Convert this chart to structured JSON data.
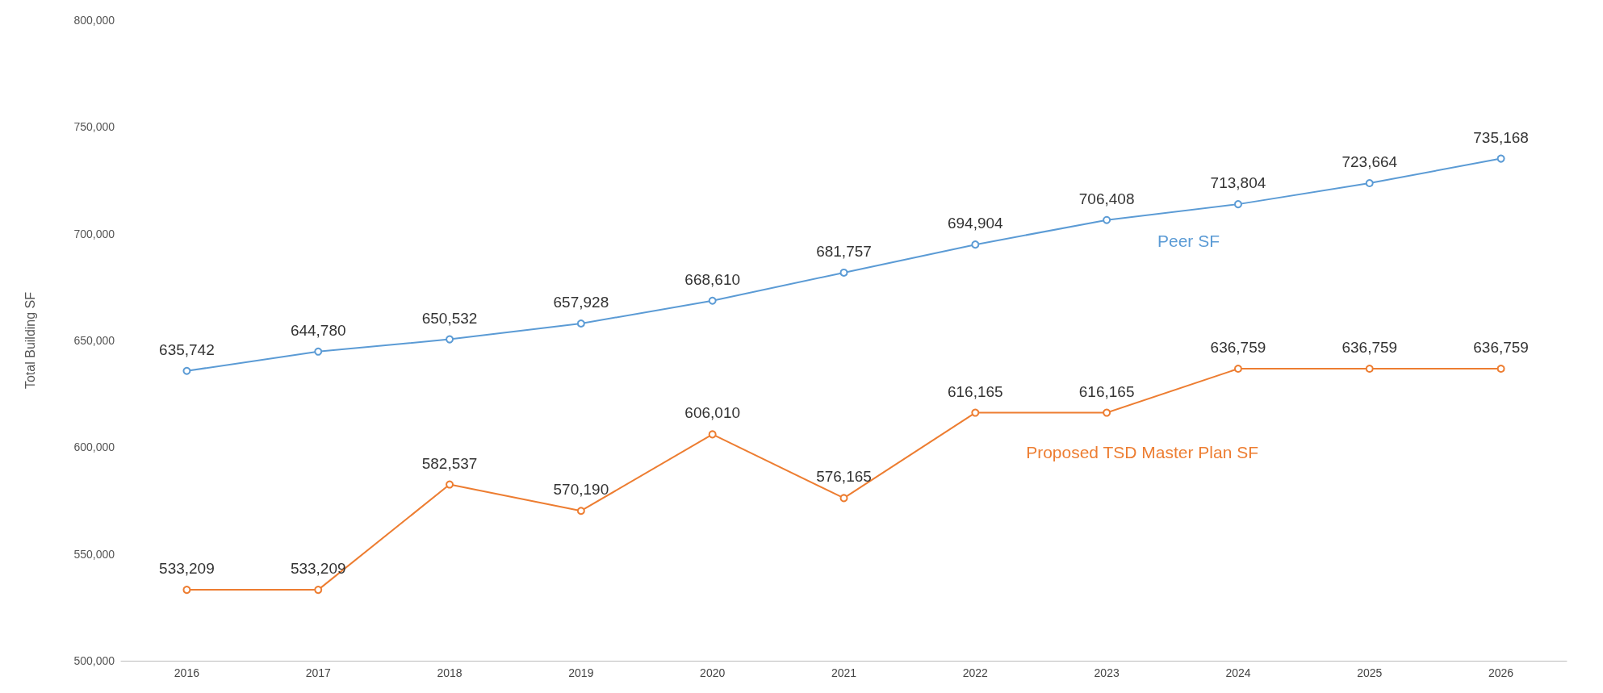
{
  "chart_data": {
    "type": "line",
    "ylabel": "Total Building SF",
    "categories": [
      "2016",
      "2017",
      "2018",
      "2019",
      "2020",
      "2021",
      "2022",
      "2023",
      "2024",
      "2025",
      "2026"
    ],
    "series": [
      {
        "name": "Peer SF",
        "color": "#5b9bd5",
        "values": [
          635742,
          644780,
          650532,
          657928,
          668610,
          681757,
          694904,
          706408,
          713804,
          723664,
          735168
        ],
        "value_labels": [
          "635,742",
          "644,780",
          "650,532",
          "657,928",
          "668,610",
          "681,757",
          "694,904",
          "706,408",
          "713,804",
          "723,664",
          "735,168"
        ]
      },
      {
        "name": "Proposed TSD Master Plan SF",
        "color": "#ed7d31",
        "values": [
          533209,
          533209,
          582537,
          570190,
          606010,
          576165,
          616165,
          616165,
          636759,
          636759,
          636759
        ],
        "value_labels": [
          "533,209",
          "533,209",
          "582,537",
          "570,190",
          "606,010",
          "576,165",
          "616,165",
          "616,165",
          "636,759",
          "636,759",
          "636,759"
        ]
      }
    ],
    "ylim": [
      500000,
      800000
    ],
    "yticks": [
      {
        "value": 500000,
        "label": "500,000"
      },
      {
        "value": 550000,
        "label": "550,000"
      },
      {
        "value": 600000,
        "label": "600,000"
      },
      {
        "value": 650000,
        "label": "650,000"
      },
      {
        "value": 700000,
        "label": "700,000"
      },
      {
        "value": 750000,
        "label": "750,000"
      },
      {
        "value": 800000,
        "label": "800,000"
      }
    ],
    "grid": false,
    "legend": false,
    "marker": "circle",
    "line_style": "solid"
  }
}
